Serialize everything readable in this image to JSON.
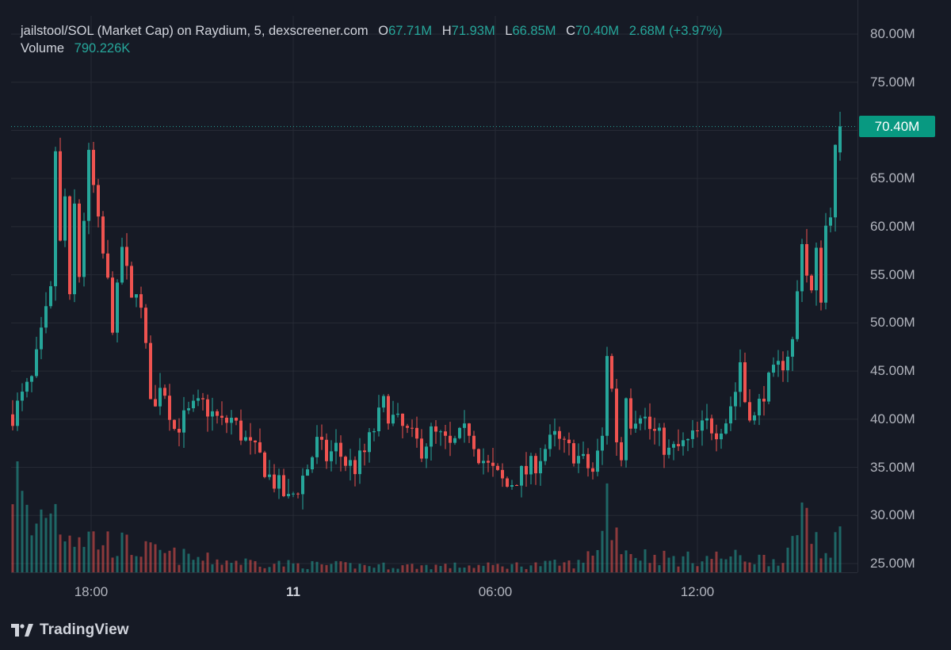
{
  "legend": {
    "title": "jailstool/SOL (Market Cap) on Raydium, 5, dexscreener.com",
    "open_key": "O",
    "open": "67.71M",
    "high_key": "H",
    "high": "71.93M",
    "low_key": "L",
    "low": "66.85M",
    "close_key": "C",
    "close": "70.40M",
    "change": "2.68M (+3.97%)",
    "volume_key": "Volume",
    "volume": "790.226K"
  },
  "current_price_label": "70.40M",
  "brand": "TradingView",
  "colors": {
    "background": "#161a25",
    "grid": "#262a35",
    "up": "#26a69a",
    "down": "#ef5350",
    "badge": "#089981",
    "text": "#b2b5be"
  },
  "chart_data": {
    "type": "candlestick",
    "title": "jailstool/SOL (Market Cap) on Raydium, 5, dexscreener.com",
    "interval_minutes": 5,
    "y_axis": {
      "unit": "M",
      "range": [
        25,
        80
      ],
      "ticks": [
        "80.00M",
        "75.00M",
        "70.00M",
        "65.00M",
        "60.00M",
        "55.00M",
        "50.00M",
        "45.00M",
        "40.00M",
        "35.00M",
        "30.00M",
        "25.00M"
      ]
    },
    "x_axis": {
      "ticks": [
        "18:00",
        "11",
        "06:00",
        "12:00"
      ]
    },
    "last_price": 70.4,
    "last_candle": {
      "open": 67.71,
      "high": 71.93,
      "low": 66.85,
      "close": 70.4,
      "change": 2.68,
      "change_pct": 3.97
    },
    "last_volume": "790.226K",
    "price_path": [
      [
        0,
        40.5
      ],
      [
        4,
        44
      ],
      [
        8,
        53
      ],
      [
        9,
        68
      ],
      [
        10,
        58
      ],
      [
        11,
        63
      ],
      [
        12,
        52
      ],
      [
        13,
        62
      ],
      [
        14,
        55
      ],
      [
        16,
        67
      ],
      [
        17,
        64
      ],
      [
        18,
        60
      ],
      [
        19,
        57
      ],
      [
        20,
        54
      ],
      [
        21,
        50
      ],
      [
        22,
        53
      ],
      [
        23,
        58
      ],
      [
        24,
        55
      ],
      [
        25,
        52
      ],
      [
        26,
        54
      ],
      [
        27,
        51
      ],
      [
        28,
        47
      ],
      [
        29,
        43
      ],
      [
        30,
        41
      ],
      [
        31,
        44
      ],
      [
        32,
        43
      ],
      [
        33,
        41
      ],
      [
        34,
        39
      ],
      [
        36,
        40
      ],
      [
        38,
        41
      ],
      [
        40,
        41.5
      ],
      [
        42,
        40.5
      ],
      [
        44,
        39.5
      ],
      [
        46,
        40
      ],
      [
        48,
        38.5
      ],
      [
        50,
        37
      ],
      [
        52,
        36
      ],
      [
        54,
        34
      ],
      [
        56,
        33
      ],
      [
        58,
        31.5
      ],
      [
        60,
        33
      ],
      [
        62,
        35
      ],
      [
        64,
        37.5
      ],
      [
        66,
        36
      ],
      [
        68,
        37
      ],
      [
        70,
        35.5
      ],
      [
        72,
        35
      ],
      [
        74,
        36.5
      ],
      [
        76,
        39
      ],
      [
        78,
        41.5
      ],
      [
        80,
        40
      ],
      [
        82,
        39
      ],
      [
        84,
        38
      ],
      [
        86,
        37
      ],
      [
        88,
        38.5
      ],
      [
        90,
        38
      ],
      [
        92,
        37
      ],
      [
        94,
        38
      ],
      [
        96,
        39
      ],
      [
        98,
        36.5
      ],
      [
        100,
        35
      ],
      [
        102,
        34
      ],
      [
        104,
        33
      ],
      [
        106,
        34
      ],
      [
        108,
        34.5
      ],
      [
        110,
        35.5
      ],
      [
        112,
        37
      ],
      [
        114,
        38
      ],
      [
        116,
        37
      ],
      [
        118,
        36.5
      ],
      [
        120,
        35.5
      ],
      [
        122,
        34.5
      ],
      [
        124,
        38
      ],
      [
        125,
        47
      ],
      [
        126,
        43
      ],
      [
        127,
        38
      ],
      [
        128,
        36
      ],
      [
        129,
        43
      ],
      [
        130,
        40
      ],
      [
        132,
        41
      ],
      [
        134,
        39
      ],
      [
        136,
        38
      ],
      [
        138,
        36.5
      ],
      [
        140,
        37
      ],
      [
        142,
        37.5
      ],
      [
        144,
        38.5
      ],
      [
        146,
        39.5
      ],
      [
        148,
        39
      ],
      [
        150,
        40
      ],
      [
        152,
        43
      ],
      [
        153,
        46
      ],
      [
        154,
        42
      ],
      [
        156,
        40
      ],
      [
        158,
        43
      ],
      [
        160,
        44.5
      ],
      [
        162,
        46
      ],
      [
        164,
        48
      ],
      [
        165,
        53
      ],
      [
        166,
        59
      ],
      [
        167,
        55
      ],
      [
        168,
        53
      ],
      [
        169,
        57
      ],
      [
        170,
        53
      ],
      [
        171,
        60
      ],
      [
        172,
        62
      ],
      [
        173,
        67.7
      ],
      [
        174,
        70.4
      ]
    ],
    "volume_profile": [
      [
        0,
        0.8
      ],
      [
        4,
        0.3
      ],
      [
        8,
        0.6
      ],
      [
        10,
        0.4
      ],
      [
        14,
        0.3
      ],
      [
        18,
        0.25
      ],
      [
        24,
        0.2
      ],
      [
        30,
        0.15
      ],
      [
        40,
        0.1
      ],
      [
        60,
        0.06
      ],
      [
        80,
        0.05
      ],
      [
        100,
        0.05
      ],
      [
        120,
        0.07
      ],
      [
        124,
        0.3
      ],
      [
        125,
        0.6
      ],
      [
        127,
        0.3
      ],
      [
        130,
        0.15
      ],
      [
        140,
        0.1
      ],
      [
        150,
        0.12
      ],
      [
        160,
        0.1
      ],
      [
        165,
        0.2
      ],
      [
        166,
        0.6
      ],
      [
        168,
        0.35
      ],
      [
        170,
        0.25
      ],
      [
        172,
        0.2
      ],
      [
        174,
        0.3
      ]
    ]
  }
}
